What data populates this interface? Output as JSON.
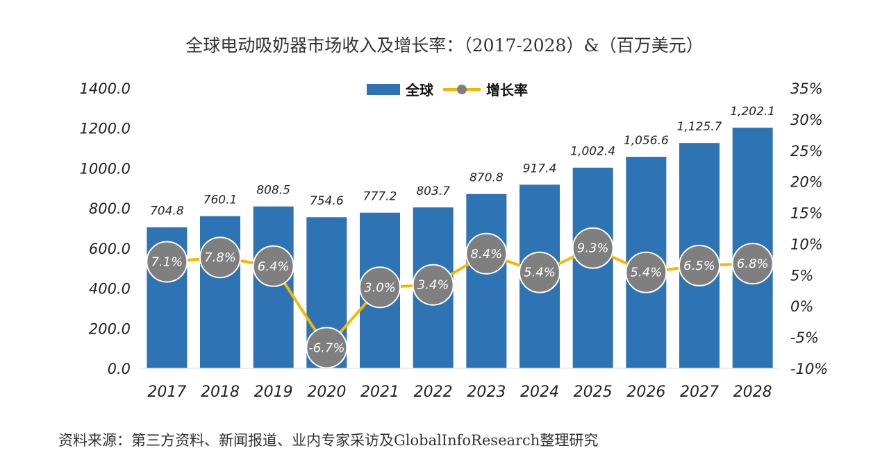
{
  "title": "全球电动吸奶器市场收入及增长率：（2017-2028）&（百万美元）",
  "source_note": "资料来源：第三方资料、新闻报道、业内专家采访及GlobalInfoResearch整理研究",
  "legend": {
    "bar_label": "全球",
    "line_label": "增长率"
  },
  "colors": {
    "bar": "#2e74b5",
    "line": "#f5b800",
    "marker": "#7f7f7f"
  },
  "chart_data": {
    "type": "bar",
    "categories": [
      "2017",
      "2018",
      "2019",
      "2020",
      "2021",
      "2022",
      "2023",
      "2024",
      "2025",
      "2026",
      "2027",
      "2028"
    ],
    "series": [
      {
        "name": "全球",
        "type": "bar",
        "axis": "left",
        "values": [
          704.8,
          760.1,
          808.5,
          754.6,
          777.2,
          803.7,
          870.8,
          917.4,
          1002.4,
          1056.6,
          1125.7,
          1202.1
        ],
        "labels": [
          "704.8",
          "760.1",
          "808.5",
          "754.6",
          "777.2",
          "803.7",
          "870.8",
          "917.4",
          "1,002.4",
          "1,056.6",
          "1,125.7",
          "1,202.1"
        ]
      },
      {
        "name": "增长率",
        "type": "line",
        "axis": "right",
        "values": [
          7.1,
          7.8,
          6.4,
          -6.7,
          3.0,
          3.4,
          8.4,
          5.4,
          9.3,
          5.4,
          6.5,
          6.8
        ],
        "labels": [
          "7.1%",
          "7.8%",
          "6.4%",
          "-6.7%",
          "3.0%",
          "3.4%",
          "8.4%",
          "5.4%",
          "9.3%",
          "5.4%",
          "6.5%",
          "6.8%"
        ]
      }
    ],
    "y_left": {
      "range": [
        0,
        1400
      ],
      "ticks": [
        "0.0",
        "200.0",
        "400.0",
        "600.0",
        "800.0",
        "1000.0",
        "1200.0",
        "1400.0"
      ]
    },
    "y_right": {
      "range": [
        -10,
        35
      ],
      "ticks": [
        "-10%",
        "-5%",
        "0%",
        "5%",
        "10%",
        "15%",
        "20%",
        "25%",
        "30%",
        "35%"
      ]
    },
    "grid": false,
    "legend_position": "top-center"
  }
}
